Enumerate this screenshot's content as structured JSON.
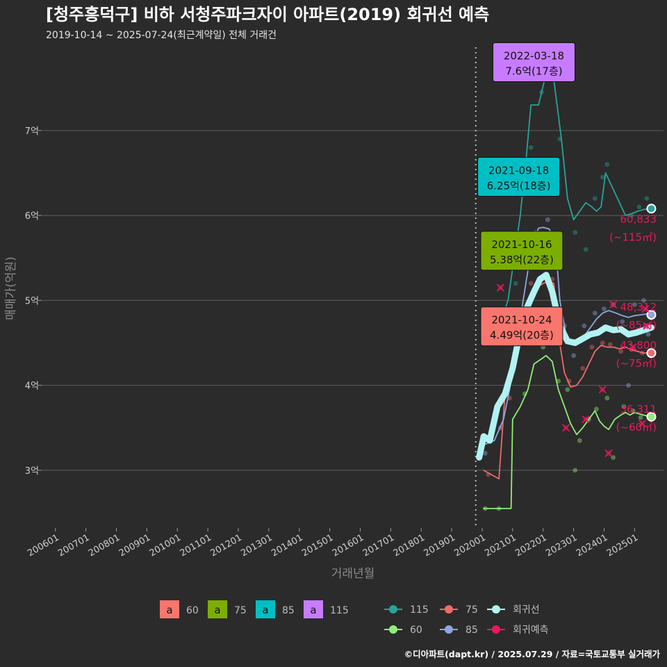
{
  "header": {
    "title": "[청주흥덕구] 비하 서청주파크자이 아파트(2019) 회귀선 예측",
    "subtitle": "2019-10-14 ~ 2025-07-24(최근계약일) 전체 거래건"
  },
  "caption": "©디아파트(dapt.kr) / 2025.07.29 / 자료=국토교통부 실거래가",
  "chart_data": {
    "type": "line",
    "xlabel": "거래년월",
    "ylabel": "매매가(억원)",
    "x_ticks": [
      "200601",
      "200701",
      "200801",
      "200901",
      "201001",
      "201101",
      "201201",
      "201301",
      "201401",
      "201501",
      "201601",
      "201701",
      "201801",
      "201901",
      "202001",
      "202101",
      "202201",
      "202301",
      "202401",
      "202501"
    ],
    "x_range": [
      2005.55,
      2025.95
    ],
    "y_ticks": [
      {
        "value": 3,
        "label": "3억"
      },
      {
        "value": 4,
        "label": "4억"
      },
      {
        "value": 5,
        "label": "5억"
      },
      {
        "value": 6,
        "label": "6억"
      },
      {
        "value": 7,
        "label": "7억"
      }
    ],
    "y_range": [
      2.32,
      7.98
    ],
    "grid": true,
    "reference_line_x": 2019.79,
    "colors": {
      "s60": "#90ee78",
      "s75": "#f06a6a",
      "s85": "#8ea7e0",
      "s115": "#2aa39a",
      "trend": "#b2f2f2",
      "forecast": "#e8195e",
      "callout60": "#f8766d",
      "callout75": "#7cae00",
      "callout85": "#00bfc4",
      "callout115": "#c77cff"
    },
    "series": [
      {
        "name": "60",
        "key": "s60",
        "points": [
          [
            2020.05,
            2.55
          ],
          [
            2020.6,
            2.55
          ],
          [
            2020.95,
            2.55
          ],
          [
            2021.0,
            3.6
          ],
          [
            2021.25,
            3.75
          ],
          [
            2021.5,
            3.95
          ],
          [
            2021.7,
            4.25
          ],
          [
            2021.9,
            4.3
          ],
          [
            2022.1,
            4.35
          ],
          [
            2022.3,
            4.28
          ],
          [
            2022.5,
            3.95
          ],
          [
            2022.7,
            3.75
          ],
          [
            2022.9,
            3.55
          ],
          [
            2023.1,
            3.42
          ],
          [
            2023.3,
            3.5
          ],
          [
            2023.5,
            3.6
          ],
          [
            2023.7,
            3.7
          ],
          [
            2023.85,
            3.58
          ],
          [
            2024.0,
            3.52
          ],
          [
            2024.15,
            3.48
          ],
          [
            2024.35,
            3.6
          ],
          [
            2024.55,
            3.65
          ],
          [
            2024.7,
            3.68
          ],
          [
            2024.85,
            3.65
          ],
          [
            2025.0,
            3.68
          ],
          [
            2025.2,
            3.66
          ],
          [
            2025.4,
            3.64
          ],
          [
            2025.55,
            3.63
          ]
        ]
      },
      {
        "name": "75",
        "key": "s75",
        "points": [
          [
            2020.05,
            3.0
          ],
          [
            2020.3,
            2.95
          ],
          [
            2020.55,
            2.9
          ],
          [
            2020.75,
            3.9
          ],
          [
            2021.0,
            4.25
          ],
          [
            2021.2,
            4.55
          ],
          [
            2021.4,
            4.9
          ],
          [
            2021.6,
            5.05
          ],
          [
            2021.8,
            5.15
          ],
          [
            2022.0,
            5.2
          ],
          [
            2022.2,
            5.22
          ],
          [
            2022.35,
            5.2
          ],
          [
            2022.5,
            4.6
          ],
          [
            2022.7,
            4.15
          ],
          [
            2022.9,
            3.98
          ],
          [
            2023.1,
            4.0
          ],
          [
            2023.3,
            4.1
          ],
          [
            2023.5,
            4.25
          ],
          [
            2023.7,
            4.4
          ],
          [
            2023.9,
            4.47
          ],
          [
            2024.1,
            4.45
          ],
          [
            2024.3,
            4.45
          ],
          [
            2024.5,
            4.43
          ],
          [
            2024.7,
            4.45
          ],
          [
            2024.9,
            4.42
          ],
          [
            2025.1,
            4.4
          ],
          [
            2025.3,
            4.38
          ],
          [
            2025.55,
            4.38
          ]
        ]
      },
      {
        "name": "85",
        "key": "s85",
        "points": [
          [
            2020.05,
            3.3
          ],
          [
            2020.4,
            3.35
          ],
          [
            2020.7,
            3.6
          ],
          [
            2020.9,
            3.95
          ],
          [
            2021.1,
            4.4
          ],
          [
            2021.3,
            4.9
          ],
          [
            2021.5,
            5.35
          ],
          [
            2021.7,
            5.7
          ],
          [
            2021.85,
            5.85
          ],
          [
            2022.0,
            5.86
          ],
          [
            2022.2,
            5.84
          ],
          [
            2022.4,
            5.7
          ],
          [
            2022.55,
            5.0
          ],
          [
            2022.75,
            4.6
          ],
          [
            2022.95,
            4.48
          ],
          [
            2023.15,
            4.5
          ],
          [
            2023.35,
            4.58
          ],
          [
            2023.55,
            4.68
          ],
          [
            2023.75,
            4.78
          ],
          [
            2023.95,
            4.85
          ],
          [
            2024.15,
            4.88
          ],
          [
            2024.4,
            4.85
          ],
          [
            2024.6,
            4.82
          ],
          [
            2024.8,
            4.8
          ],
          [
            2025.0,
            4.82
          ],
          [
            2025.2,
            4.83
          ],
          [
            2025.4,
            4.84
          ],
          [
            2025.55,
            4.83
          ]
        ]
      },
      {
        "name": "115",
        "key": "s115",
        "points": [
          [
            2020.4,
            4.7
          ],
          [
            2020.65,
            4.8
          ],
          [
            2020.85,
            5.0
          ],
          [
            2021.05,
            5.5
          ],
          [
            2021.25,
            6.0
          ],
          [
            2021.45,
            6.7
          ],
          [
            2021.6,
            7.3
          ],
          [
            2021.85,
            7.3
          ],
          [
            2022.05,
            7.6
          ],
          [
            2022.35,
            7.6
          ],
          [
            2022.6,
            6.9
          ],
          [
            2022.8,
            6.2
          ],
          [
            2023.0,
            5.95
          ],
          [
            2023.2,
            6.05
          ],
          [
            2023.4,
            6.15
          ],
          [
            2023.6,
            6.1
          ],
          [
            2023.75,
            6.05
          ],
          [
            2023.9,
            6.1
          ],
          [
            2024.05,
            6.5
          ],
          [
            2024.7,
            6.0
          ],
          [
            2024.9,
            6.02
          ],
          [
            2025.1,
            6.05
          ],
          [
            2025.3,
            6.07
          ],
          [
            2025.55,
            6.08
          ]
        ]
      },
      {
        "name": "회귀선",
        "key": "trend",
        "points": [
          [
            2019.9,
            3.15
          ],
          [
            2020.05,
            3.4
          ],
          [
            2020.25,
            3.35
          ],
          [
            2020.5,
            3.75
          ],
          [
            2020.75,
            3.9
          ],
          [
            2021.0,
            4.2
          ],
          [
            2021.2,
            4.55
          ],
          [
            2021.45,
            4.9
          ],
          [
            2021.7,
            5.1
          ],
          [
            2021.9,
            5.25
          ],
          [
            2022.1,
            5.3
          ],
          [
            2022.3,
            5.1
          ],
          [
            2022.55,
            4.7
          ],
          [
            2022.8,
            4.52
          ],
          [
            2023.05,
            4.5
          ],
          [
            2023.3,
            4.55
          ],
          [
            2023.55,
            4.6
          ],
          [
            2023.8,
            4.62
          ],
          [
            2024.05,
            4.68
          ],
          [
            2024.3,
            4.65
          ],
          [
            2024.55,
            4.66
          ],
          [
            2024.8,
            4.6
          ],
          [
            2025.05,
            4.62
          ],
          [
            2025.3,
            4.65
          ],
          [
            2025.55,
            4.68
          ]
        ]
      }
    ],
    "scatter": {
      "s60": [
        [
          2020.1,
          2.55
        ],
        [
          2020.55,
          2.55
        ],
        [
          2021.4,
          3.9
        ],
        [
          2021.75,
          4.5
        ],
        [
          2022.0,
          4.45
        ],
        [
          2022.5,
          4.05
        ],
        [
          2022.8,
          3.95
        ],
        [
          2023.05,
          3.0
        ],
        [
          2023.2,
          3.35
        ],
        [
          2023.5,
          3.6
        ],
        [
          2023.75,
          3.72
        ],
        [
          2024.1,
          3.85
        ],
        [
          2024.3,
          3.15
        ],
        [
          2024.65,
          3.75
        ],
        [
          2024.95,
          3.7
        ],
        [
          2025.2,
          3.62
        ]
      ],
      "s75": [
        [
          2020.2,
          2.95
        ],
        [
          2020.9,
          3.85
        ],
        [
          2021.3,
          4.65
        ],
        [
          2021.6,
          5.2
        ],
        [
          2022.05,
          5.3
        ],
        [
          2022.3,
          5.25
        ],
        [
          2022.85,
          4.05
        ],
        [
          2023.3,
          4.2
        ],
        [
          2023.6,
          4.45
        ],
        [
          2023.95,
          4.5
        ],
        [
          2024.2,
          4.48
        ],
        [
          2024.55,
          4.4
        ],
        [
          2024.9,
          4.42
        ],
        [
          2025.25,
          4.38
        ]
      ],
      "s85": [
        [
          2020.1,
          3.2
        ],
        [
          2020.6,
          3.5
        ],
        [
          2021.15,
          4.5
        ],
        [
          2021.5,
          5.45
        ],
        [
          2021.75,
          5.8
        ],
        [
          2022.15,
          5.95
        ],
        [
          2022.45,
          5.5
        ],
        [
          2022.7,
          4.7
        ],
        [
          2023.0,
          4.35
        ],
        [
          2023.35,
          4.7
        ],
        [
          2023.7,
          4.85
        ],
        [
          2024.0,
          4.9
        ],
        [
          2024.3,
          4.95
        ],
        [
          2024.6,
          4.75
        ],
        [
          2024.8,
          4.0
        ],
        [
          2025.0,
          4.95
        ],
        [
          2025.3,
          5.0
        ],
        [
          2025.45,
          4.6
        ]
      ],
      "s115": [
        [
          2021.1,
          5.2
        ],
        [
          2021.6,
          6.8
        ],
        [
          2021.95,
          7.45
        ],
        [
          2022.55,
          6.9
        ],
        [
          2023.05,
          5.8
        ],
        [
          2023.4,
          5.6
        ],
        [
          2023.7,
          6.2
        ],
        [
          2023.95,
          6.45
        ],
        [
          2024.1,
          6.6
        ],
        [
          2024.9,
          6.0
        ],
        [
          2025.15,
          6.1
        ],
        [
          2025.4,
          6.2
        ]
      ]
    },
    "forecast_marks": [
      [
        2020.35,
        4.85
      ],
      [
        2020.6,
        5.15
      ],
      [
        2021.3,
        4.75
      ],
      [
        2021.95,
        5.7
      ],
      [
        2022.75,
        3.5
      ],
      [
        2023.4,
        3.6
      ],
      [
        2023.95,
        3.95
      ],
      [
        2024.15,
        3.2
      ],
      [
        2024.3,
        4.95
      ],
      [
        2024.95,
        4.45
      ],
      [
        2025.25,
        3.55
      ],
      [
        2025.35,
        4.9
      ],
      [
        2025.4,
        4.7
      ]
    ],
    "callouts": [
      {
        "key": "callout115",
        "date": "2022-03-18",
        "price": "7.6억(17층)",
        "anchor": [
          2022.2,
          7.6
        ]
      },
      {
        "key": "callout85",
        "date": "2021-09-18",
        "price": "6.25억(18층)",
        "anchor": [
          2021.7,
          6.25
        ]
      },
      {
        "key": "callout75",
        "date": "2021-10-16",
        "price": "5.38억(22층)",
        "anchor": [
          2021.8,
          5.38
        ]
      },
      {
        "key": "callout60",
        "date": "2021-10-24",
        "price": "4.49억(20층)",
        "anchor": [
          2021.8,
          4.49
        ]
      }
    ],
    "end_labels": [
      {
        "key": "s115",
        "value": "60,833",
        "area": "(~115㎡)",
        "y": 6.08
      },
      {
        "key": "s85",
        "value": "48,312",
        "area": "(~85㎡)",
        "y": 4.83
      },
      {
        "key": "s75",
        "value": "43,800",
        "area": "(~75㎡)",
        "y": 4.38
      },
      {
        "key": "s60",
        "value": "36,311",
        "area": "(~60㎡)",
        "y": 3.63
      }
    ],
    "legend_area": [
      {
        "key": "callout60",
        "label": "60"
      },
      {
        "key": "callout75",
        "label": "75"
      },
      {
        "key": "callout85",
        "label": "85"
      },
      {
        "key": "callout115",
        "label": "115"
      }
    ],
    "legend_area_glyph": "a",
    "legend_series": [
      {
        "key": "s115",
        "label": "115"
      },
      {
        "key": "s75",
        "label": "75"
      },
      {
        "key": "trend",
        "label": "회귀선"
      },
      {
        "key": "s60",
        "label": "60"
      },
      {
        "key": "s85",
        "label": "85"
      },
      {
        "key": "forecast",
        "label": "회귀예측"
      }
    ]
  }
}
